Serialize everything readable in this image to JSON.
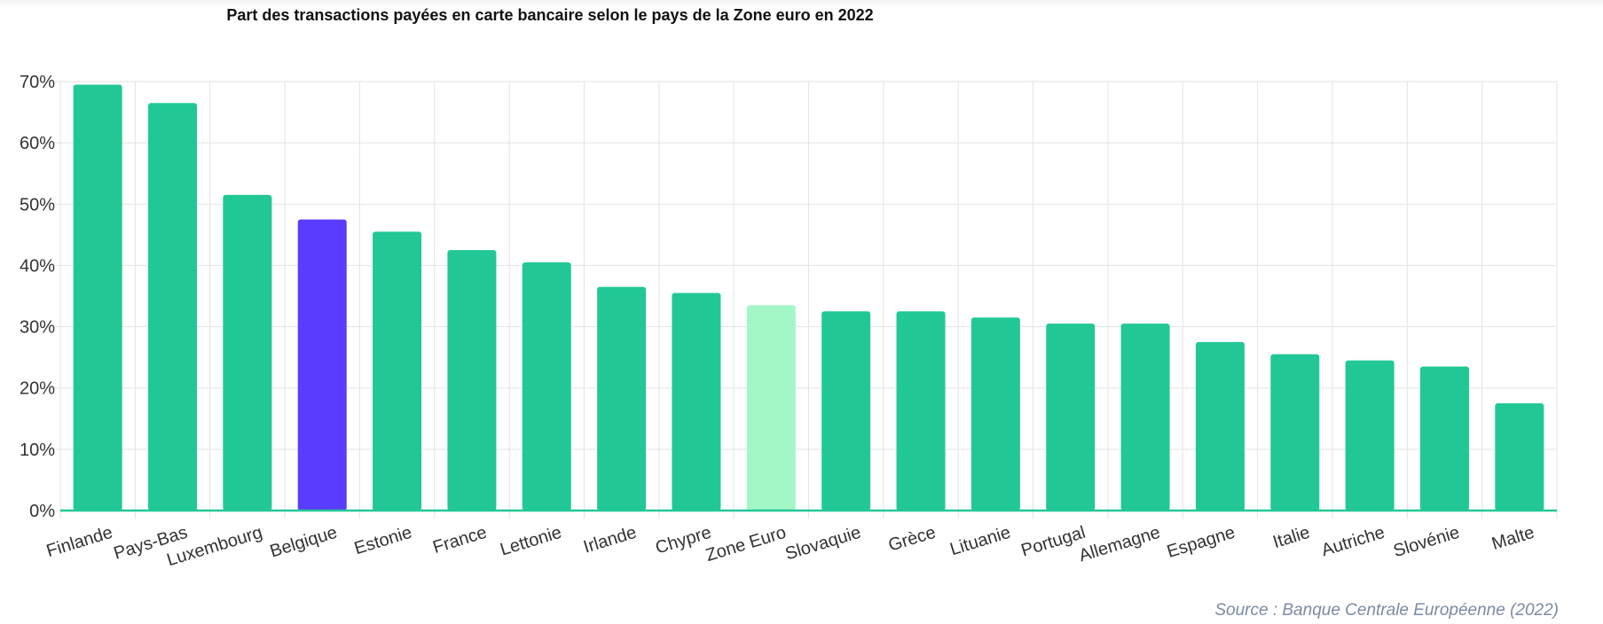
{
  "title": "Part des transactions payées en carte bancaire selon le pays de la Zone euro en 2022",
  "source": "Source : Banque Centrale Européenne (2022)",
  "colors": {
    "default": "#21c896",
    "highlight": "#5a3cff",
    "average": "#a3f7c6",
    "baseline": "#21c896",
    "grid": "#e3e3e3"
  },
  "chart_data": {
    "type": "bar",
    "title": "Part des transactions payées en carte bancaire selon le pays de la Zone euro en 2022",
    "categories": [
      "Finlande",
      "Pays-Bas",
      "Luxembourg",
      "Belgique",
      "Estonie",
      "France",
      "Lettonie",
      "Irlande",
      "Chypre",
      "Zone Euro",
      "Slovaquie",
      "Grèce",
      "Lituanie",
      "Portugal",
      "Allemagne",
      "Espagne",
      "Italie",
      "Autriche",
      "Slovénie",
      "Malte"
    ],
    "values": [
      69.5,
      66.5,
      51.5,
      47.5,
      45.5,
      42.5,
      40.5,
      36.5,
      35.5,
      33.5,
      32.5,
      32.5,
      31.5,
      30.5,
      30.5,
      27.5,
      25.5,
      24.5,
      23.5,
      17.5
    ],
    "bar_colors": [
      "default",
      "default",
      "default",
      "highlight",
      "default",
      "default",
      "default",
      "default",
      "default",
      "average",
      "default",
      "default",
      "default",
      "default",
      "default",
      "default",
      "default",
      "default",
      "default",
      "default"
    ],
    "ylim": [
      0,
      70
    ],
    "yticks": [
      0,
      10,
      20,
      30,
      40,
      50,
      60,
      70
    ],
    "ytick_labels": [
      "0%",
      "10%",
      "20%",
      "30%",
      "40%",
      "50%",
      "60%",
      "70%"
    ],
    "xlabel": "",
    "ylabel": "",
    "grid": true,
    "legend": "none"
  }
}
